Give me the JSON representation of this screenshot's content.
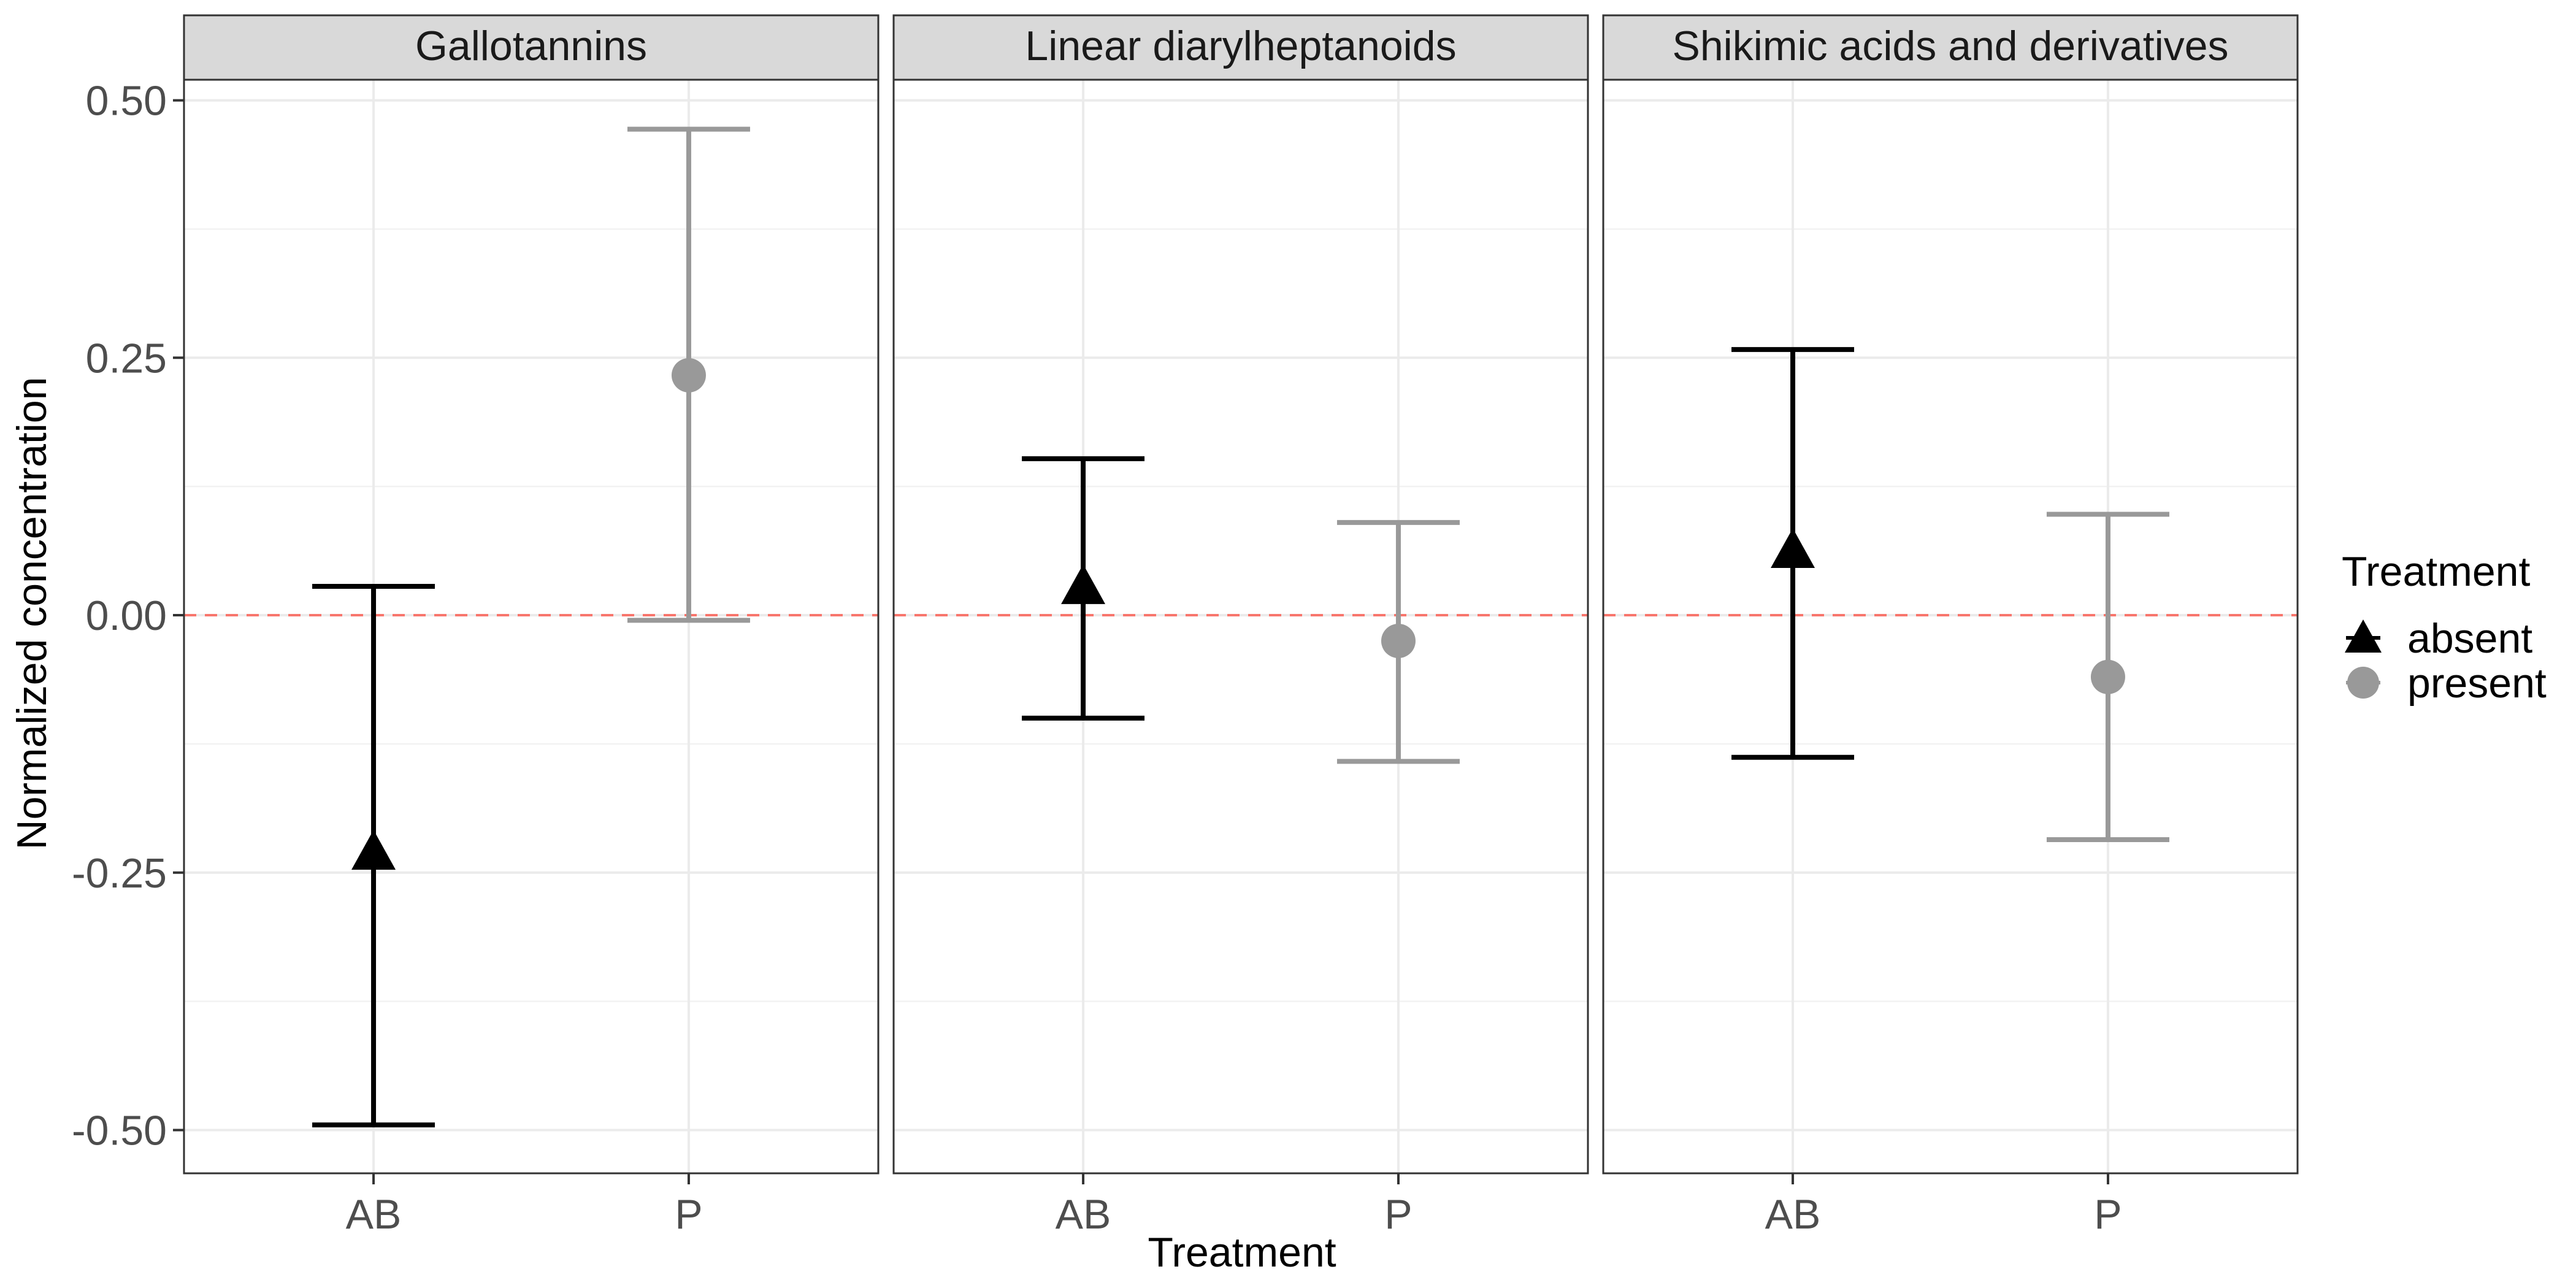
{
  "chart_data": {
    "type": "scatter",
    "xlabel": "Treatment",
    "ylabel": "Normalized concentration",
    "categories": [
      "AB",
      "P"
    ],
    "y_ticks": [
      {
        "value": 0.5,
        "label": "0.50"
      },
      {
        "value": 0.25,
        "label": "0.25"
      },
      {
        "value": 0.0,
        "label": "0.00"
      },
      {
        "value": -0.25,
        "label": "-0.25"
      },
      {
        "value": -0.5,
        "label": "-0.50"
      }
    ],
    "ylim": [
      -0.542,
      0.52
    ],
    "grid": true,
    "reference_line": {
      "y": 0.0,
      "color": "#f8766d",
      "style": "dashed"
    },
    "legend": {
      "title": "Treatment",
      "position": "right",
      "entries": [
        {
          "label": "absent",
          "shape": "triangle",
          "color": "#000000"
        },
        {
          "label": "present",
          "shape": "circle",
          "color": "#999999"
        }
      ]
    },
    "facets": [
      {
        "title": "Gallotannins",
        "points": [
          {
            "x": "AB",
            "group": "absent",
            "y": -0.23,
            "ymin": -0.495,
            "ymax": 0.028
          },
          {
            "x": "P",
            "group": "present",
            "y": 0.233,
            "ymin": -0.005,
            "ymax": 0.472
          }
        ]
      },
      {
        "title": "Linear diarylheptanoids",
        "points": [
          {
            "x": "AB",
            "group": "absent",
            "y": 0.028,
            "ymin": -0.1,
            "ymax": 0.152
          },
          {
            "x": "P",
            "group": "present",
            "y": -0.025,
            "ymin": -0.142,
            "ymax": 0.09
          }
        ]
      },
      {
        "title": "Shikimic acids and derivatives",
        "points": [
          {
            "x": "AB",
            "group": "absent",
            "y": 0.063,
            "ymin": -0.138,
            "ymax": 0.258
          },
          {
            "x": "P",
            "group": "present",
            "y": -0.06,
            "ymin": -0.218,
            "ymax": 0.098
          }
        ]
      }
    ]
  }
}
